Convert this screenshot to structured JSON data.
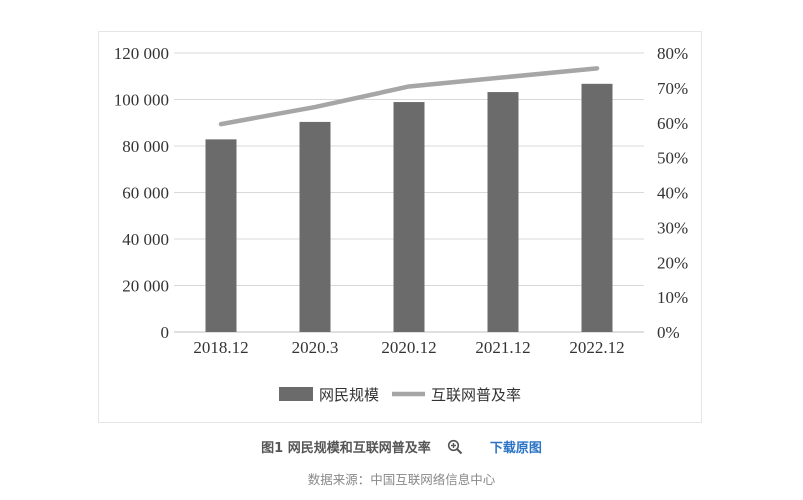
{
  "chart_data": {
    "type": "bar",
    "categories": [
      "2018.12",
      "2020.3",
      "2020.12",
      "2021.12",
      "2022.12"
    ],
    "series": [
      {
        "name": "网民规模",
        "type": "bar",
        "axis": "left",
        "values": [
          82851,
          90359,
          98899,
          103195,
          106744
        ],
        "color": "#6b6b6b"
      },
      {
        "name": "互联网普及率",
        "type": "line",
        "axis": "right",
        "values": [
          59.6,
          64.5,
          70.4,
          73.0,
          75.6
        ],
        "color": "#a6a6a6"
      }
    ],
    "y_left": {
      "ticks": [
        "0",
        "20 000",
        "40 000",
        "60 000",
        "80 000",
        "100 000",
        "120 000"
      ],
      "ylim": [
        0,
        120000
      ]
    },
    "y_right": {
      "ticks": [
        "0%",
        "10%",
        "20%",
        "30%",
        "40%",
        "50%",
        "60%",
        "70%",
        "80%"
      ],
      "ylim": [
        0,
        80
      ]
    },
    "grid": true,
    "legend_position": "bottom"
  },
  "caption": {
    "title": "图1 网民规模和互联网普及率",
    "zoom_icon": "zoom-in-icon",
    "download": "下载原图"
  },
  "source": "数据来源：中国互联网络信息中心"
}
